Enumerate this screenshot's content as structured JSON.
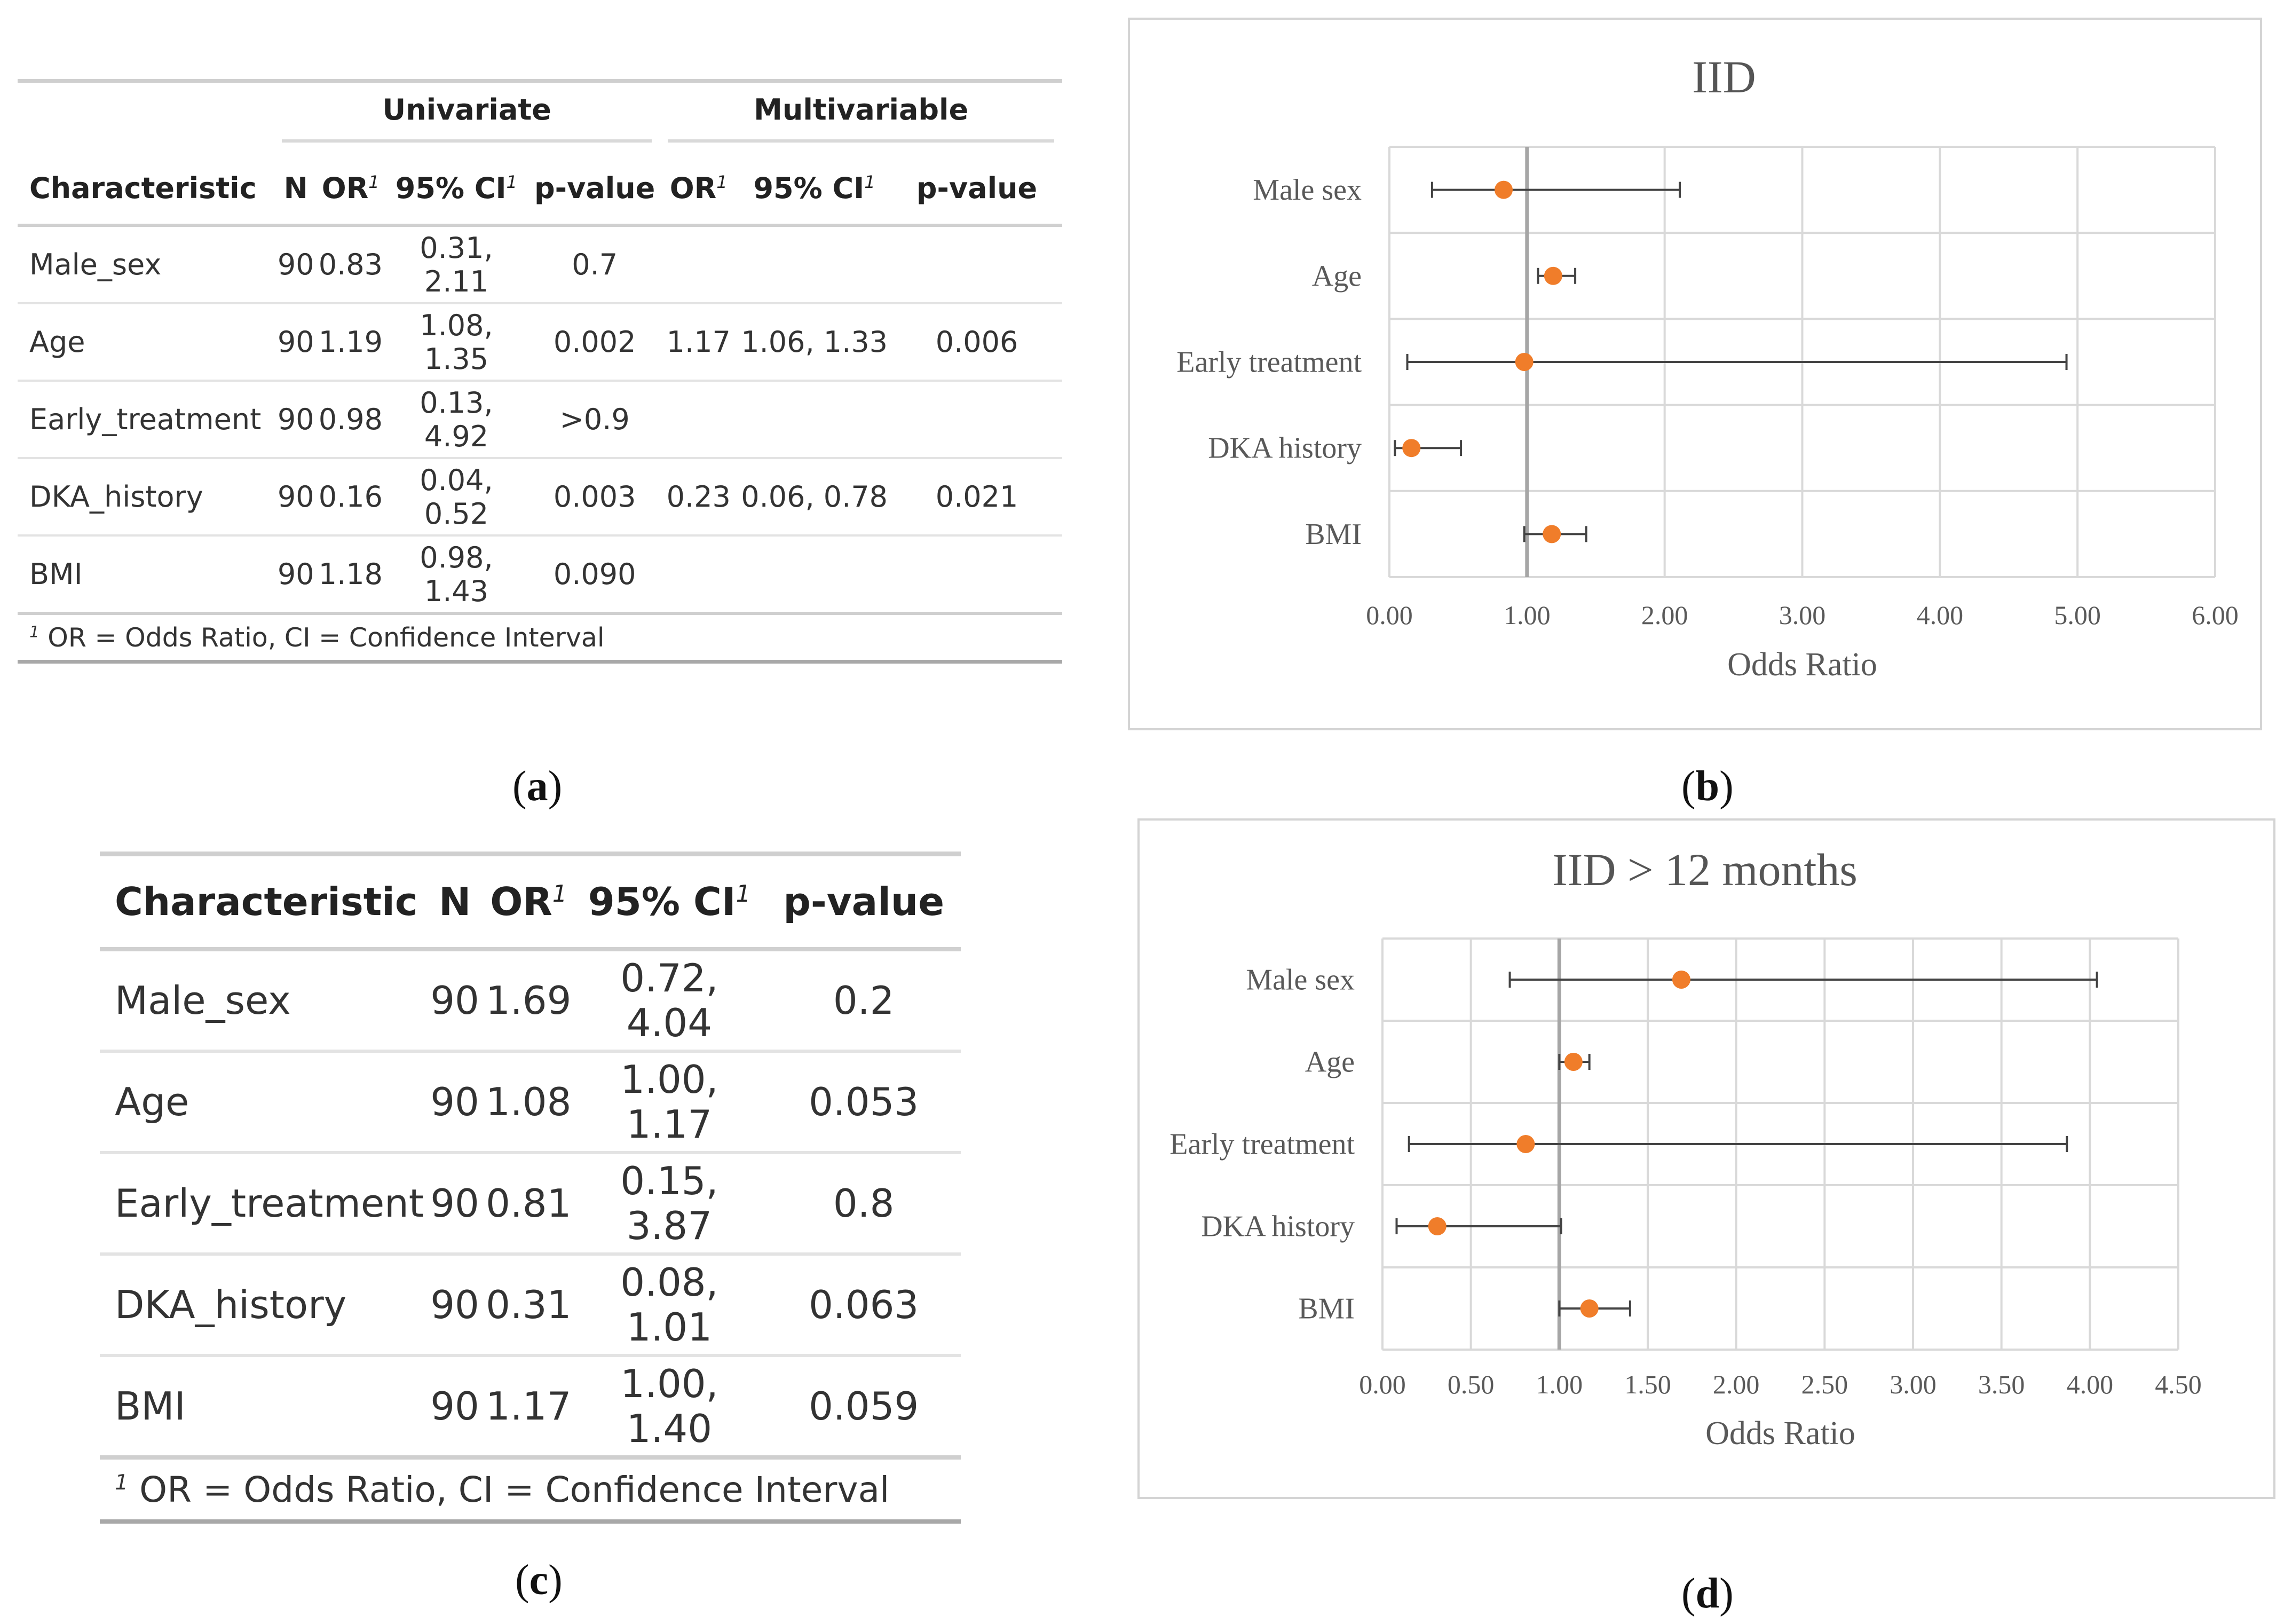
{
  "panel_labels": {
    "a": "a",
    "b": "b",
    "c": "c",
    "d": "d"
  },
  "table_a": {
    "groups": {
      "univariate": "Univariate",
      "multivariable": "Multivariable"
    },
    "headers": {
      "characteristic": "Characteristic",
      "n": "N",
      "or": "OR",
      "ci": "95% CI",
      "p": "p-value",
      "sup": "1"
    },
    "rows": [
      {
        "name": "Male_sex",
        "n": "90",
        "or": "0.83",
        "ci": "0.31, 2.11",
        "p": "0.7",
        "mor": "",
        "mci": "",
        "mp": ""
      },
      {
        "name": "Age",
        "n": "90",
        "or": "1.19",
        "ci": "1.08, 1.35",
        "p": "0.002",
        "mor": "1.17",
        "mci": "1.06, 1.33",
        "mp": "0.006"
      },
      {
        "name": "Early_treatment",
        "n": "90",
        "or": "0.98",
        "ci": "0.13, 4.92",
        "p": ">0.9",
        "mor": "",
        "mci": "",
        "mp": ""
      },
      {
        "name": "DKA_history",
        "n": "90",
        "or": "0.16",
        "ci": "0.04, 0.52",
        "p": "0.003",
        "mor": "0.23",
        "mci": "0.06, 0.78",
        "mp": "0.021"
      },
      {
        "name": "BMI",
        "n": "90",
        "or": "1.18",
        "ci": "0.98, 1.43",
        "p": "0.090",
        "mor": "",
        "mci": "",
        "mp": ""
      }
    ],
    "footnote": "OR = Odds Ratio, CI = Confidence Interval"
  },
  "table_c": {
    "headers": {
      "characteristic": "Characteristic",
      "n": "N",
      "or": "OR",
      "ci": "95% CI",
      "p": "p-value",
      "sup": "1"
    },
    "rows": [
      {
        "name": "Male_sex",
        "n": "90",
        "or": "1.69",
        "ci": "0.72, 4.04",
        "p": "0.2"
      },
      {
        "name": "Age",
        "n": "90",
        "or": "1.08",
        "ci": "1.00, 1.17",
        "p": "0.053"
      },
      {
        "name": "Early_treatment",
        "n": "90",
        "or": "0.81",
        "ci": "0.15, 3.87",
        "p": "0.8"
      },
      {
        "name": "DKA_history",
        "n": "90",
        "or": "0.31",
        "ci": "0.08, 1.01",
        "p": "0.063"
      },
      {
        "name": "BMI",
        "n": "90",
        "or": "1.17",
        "ci": "1.00, 1.40",
        "p": "0.059"
      }
    ],
    "footnote": "OR = Odds Ratio, CI = Confidence Interval"
  },
  "chart_data": [
    {
      "id": "b",
      "type": "scatter",
      "title": "IID",
      "xlabel": "Odds Ratio",
      "ylabel": "",
      "xlim": [
        0,
        6
      ],
      "xticks": [
        "0.00",
        "1.00",
        "2.00",
        "3.00",
        "4.00",
        "5.00",
        "6.00"
      ],
      "reference_line": 1,
      "grid": true,
      "categories": [
        "Male sex",
        "Age",
        "Early treatment",
        "DKA history",
        "BMI"
      ],
      "values": [
        0.83,
        1.19,
        0.98,
        0.16,
        1.18
      ],
      "ci_low": [
        0.31,
        1.08,
        0.13,
        0.04,
        0.98
      ],
      "ci_high": [
        2.11,
        1.35,
        4.92,
        0.52,
        1.43
      ],
      "marker_color": "#f07d2a",
      "line_color": "#444444"
    },
    {
      "id": "d",
      "type": "scatter",
      "title": "IID > 12 months",
      "xlabel": "Odds Ratio",
      "ylabel": "",
      "xlim": [
        0,
        4.5
      ],
      "xticks": [
        "0.00",
        "0.50",
        "1.00",
        "1.50",
        "2.00",
        "2.50",
        "3.00",
        "3.50",
        "4.00",
        "4.50"
      ],
      "reference_line": 1,
      "grid": true,
      "categories": [
        "Male sex",
        "Age",
        "Early treatment",
        "DKA history",
        "BMI"
      ],
      "values": [
        1.69,
        1.08,
        0.81,
        0.31,
        1.17
      ],
      "ci_low": [
        0.72,
        1.0,
        0.15,
        0.08,
        1.0
      ],
      "ci_high": [
        4.04,
        1.17,
        3.87,
        1.01,
        1.4
      ],
      "marker_color": "#f07d2a",
      "line_color": "#444444"
    }
  ]
}
